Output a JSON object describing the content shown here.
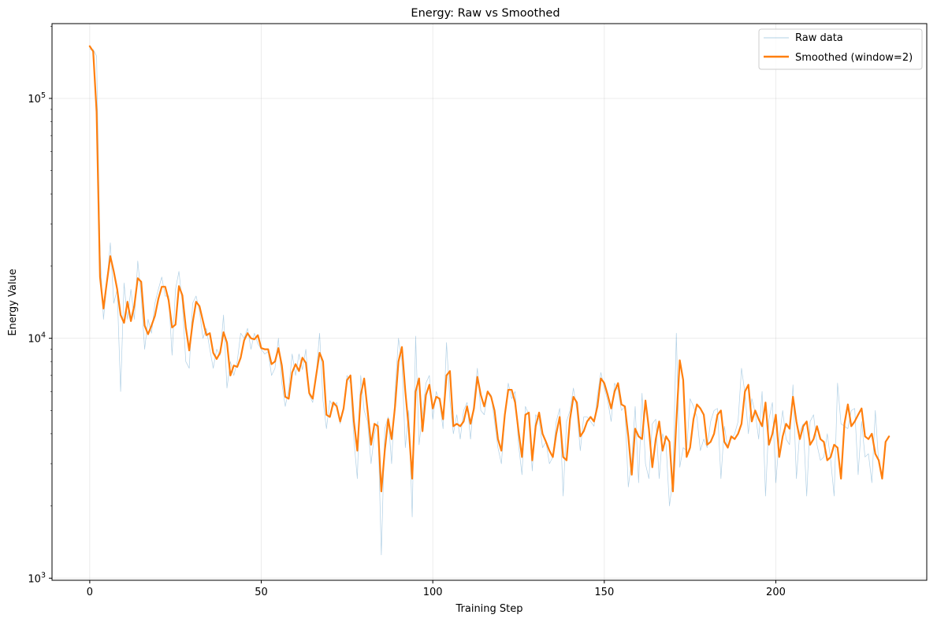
{
  "chart_data": {
    "type": "line",
    "title": "Energy: Raw vs Smoothed",
    "xlabel": "Training Step",
    "ylabel": "Energy Value",
    "xlim": [
      -11,
      244
    ],
    "ylim": [
      980,
      205000
    ],
    "yscale": "log",
    "grid": true,
    "legend_position": "top-right",
    "x_ticks": [
      0,
      50,
      100,
      150,
      200
    ],
    "y_ticks": [
      {
        "value": 1000,
        "base": "10",
        "exp": "3"
      },
      {
        "value": 10000,
        "base": "10",
        "exp": "4"
      },
      {
        "value": 100000,
        "base": "10",
        "exp": "5"
      }
    ],
    "series": [
      {
        "name": "Raw data",
        "color": "#1f77b4",
        "values": [
          160000,
          160000,
          150000,
          23000,
          12000,
          17000,
          25000,
          14000,
          16000,
          6000,
          17000,
          12000,
          16000,
          12000,
          21000,
          15000,
          9000,
          12000,
          10500,
          14000,
          16000,
          18000,
          15000,
          15000,
          8500,
          16000,
          19000,
          14000,
          8000,
          7500,
          14000,
          15000,
          13000,
          10000,
          11000,
          9000,
          7500,
          9000,
          8500,
          12500,
          6200,
          8000,
          7000,
          8000,
          10500,
          10000,
          11000,
          9000,
          10500,
          9500,
          9000,
          8600,
          8800,
          7000,
          7500,
          10000,
          6500,
          5200,
          6100,
          8600,
          7000,
          8600,
          7400,
          9000,
          5800,
          5400,
          7000,
          10500,
          5500,
          4200,
          5500,
          5200,
          5400,
          4400,
          5200,
          7000,
          6500,
          3800,
          2600,
          7000,
          5000,
          4500,
          3000,
          4000,
          4500,
          1250,
          4200,
          4700,
          3000,
          6000,
          10000,
          8000,
          3500,
          5000,
          1800,
          10200,
          3600,
          4800,
          6500,
          7000,
          4600,
          6000,
          5400,
          4200,
          9600,
          5500,
          4000,
          4800,
          3800,
          5000,
          5400,
          3800,
          5500,
          7500,
          5000,
          4800,
          6000,
          5800,
          4500,
          3500,
          3000,
          4700,
          6500,
          5600,
          6000,
          3600,
          2700,
          5200,
          4800,
          2800,
          4800,
          4600,
          3500,
          3700,
          3000,
          3200,
          4500,
          5100,
          2200,
          4500,
          5000,
          6200,
          5000,
          3400,
          4700,
          4700,
          4500,
          4300,
          5800,
          7200,
          6200,
          5500,
          4500,
          6500,
          6100,
          5000,
          5200,
          2400,
          3100,
          5200,
          2500,
          5900,
          3000,
          2600,
          4400,
          4600,
          2600,
          4000,
          3600,
          2000,
          2600,
          10500,
          2900,
          3500,
          3400,
          5600,
          5200,
          4700,
          3400,
          3800,
          3500,
          4500,
          5000,
          5100,
          2600,
          4300,
          3500,
          3800,
          4000,
          4500,
          7500,
          5900,
          4000,
          5600,
          4900,
          3800,
          6000,
          2200,
          4600,
          5400,
          2500,
          3800,
          5000,
          3800,
          3600,
          6400,
          2600,
          4100,
          4400,
          2200,
          4500,
          4800,
          3600,
          3100,
          3200,
          4000,
          3100,
          2200,
          6500,
          4400,
          4300,
          4200,
          5000,
          5100,
          2700,
          4500,
          3200,
          3300,
          2500,
          5000,
          3000
        ]
      },
      {
        "name": "Smoothed (window=2)",
        "color": "#ff7f0e",
        "values": [
          165000,
          157000,
          88000,
          18000,
          13300,
          17200,
          22000,
          19000,
          16000,
          12500,
          11600,
          14200,
          11800,
          13700,
          17800,
          17200,
          11300,
          10400,
          11300,
          12400,
          14600,
          16400,
          16400,
          14400,
          11100,
          11400,
          16500,
          15100,
          11100,
          8900,
          11600,
          14200,
          13600,
          11800,
          10300,
          10500,
          8700,
          8200,
          8700,
          10600,
          9600,
          7000,
          7700,
          7600,
          8300,
          9800,
          10500,
          10000,
          9900,
          10300,
          9100,
          9000,
          9000,
          7800,
          8000,
          9100,
          7700,
          5700,
          5600,
          7200,
          7800,
          7300,
          8300,
          7900,
          5900,
          5600,
          7000,
          8700,
          8000,
          4800,
          4700,
          5400,
          5200,
          4500,
          5100,
          6700,
          7000,
          4500,
          3400,
          5800,
          6800,
          5000,
          3600,
          4400,
          4300,
          2300,
          3400,
          4600,
          3800,
          5200,
          8000,
          9200,
          6000,
          4200,
          2600,
          6000,
          6800,
          4100,
          5800,
          6400,
          5100,
          5700,
          5600,
          4600,
          7000,
          7300,
          4300,
          4400,
          4300,
          4500,
          5200,
          4400,
          5100,
          6900,
          5800,
          5200,
          6000,
          5700,
          5000,
          3800,
          3400,
          4800,
          6100,
          6100,
          5400,
          4100,
          3200,
          4800,
          4900,
          3100,
          4300,
          4900,
          4000,
          3700,
          3400,
          3200,
          4000,
          4700,
          3200,
          3100,
          4600,
          5700,
          5400,
          3900,
          4100,
          4500,
          4700,
          4500,
          5200,
          6800,
          6500,
          5800,
          5100,
          6000,
          6500,
          5300,
          5200,
          3900,
          2700,
          4200,
          3900,
          3800,
          5500,
          4200,
          2900,
          3800,
          4500,
          3400,
          3900,
          3700,
          2300,
          4500,
          8100,
          6700,
          3200,
          3500,
          4600,
          5300,
          5100,
          4800,
          3600,
          3700,
          4000,
          4800,
          5000,
          3700,
          3500,
          3900,
          3800,
          4000,
          4400,
          6000,
          6400,
          4500,
          5000,
          4600,
          4300,
          5400,
          3600,
          4000,
          4800,
          3200,
          3900,
          4400,
          4200,
          5700,
          4500,
          3800,
          4300,
          4500,
          3600,
          3800,
          4300,
          3800,
          3700,
          3100,
          3200,
          3600,
          3500,
          2600,
          4400,
          5300,
          4300,
          4500,
          4800,
          5100,
          3900,
          3800,
          4000,
          3300,
          3100,
          2600,
          3700,
          3900
        ]
      }
    ]
  }
}
